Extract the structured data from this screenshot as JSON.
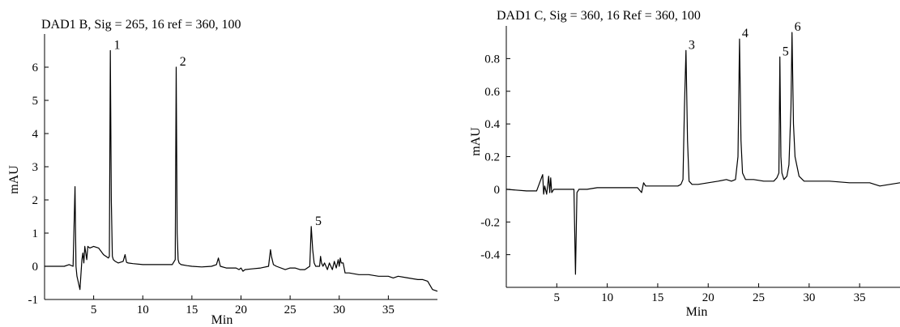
{
  "chart_data": [
    {
      "type": "line",
      "title": "DAD1 B, Sig = 265, 16 ref = 360, 100",
      "xlabel": "Min",
      "ylabel": "mAU",
      "xlim": [
        0,
        40
      ],
      "ylim": [
        -1,
        7
      ],
      "xticks": [
        5,
        10,
        15,
        20,
        25,
        30,
        35
      ],
      "yticks": [
        -1,
        0,
        1,
        2,
        3,
        4,
        5,
        6
      ],
      "grid": false,
      "peak_labels": [
        {
          "text": "1",
          "x": 6.8,
          "y": 6.5
        },
        {
          "text": "2",
          "x": 13.5,
          "y": 6.0
        },
        {
          "text": "5",
          "x": 27.3,
          "y": 1.2
        }
      ],
      "series": [
        {
          "x": [
            0,
            2.0,
            2.5,
            2.9,
            3.1,
            3.2,
            3.3,
            3.6,
            3.8,
            3.9,
            4.0,
            4.1,
            4.3,
            4.4,
            4.6,
            5.0,
            5.5,
            6.0,
            6.5,
            6.6,
            6.7,
            6.8,
            6.9,
            7.0,
            7.2,
            7.5,
            8.0,
            8.2,
            8.35,
            8.5,
            9.0,
            10.0,
            11.0,
            12.0,
            13.0,
            13.3,
            13.4,
            13.5,
            13.6,
            13.7,
            13.9,
            14.5,
            15.0,
            16.0,
            17.0,
            17.5,
            17.7,
            17.9,
            18.5,
            19.5,
            19.8,
            20.0,
            20.2,
            20.4,
            21.0,
            22.0,
            22.8,
            23.0,
            23.1,
            23.3,
            23.6,
            24.5,
            25.0,
            25.5,
            26.0,
            26.5,
            27.0,
            27.15,
            27.3,
            27.45,
            27.6,
            28.0,
            28.1,
            28.2,
            28.35,
            28.5,
            28.8,
            29.0,
            29.3,
            29.5,
            29.7,
            29.9,
            30.0,
            30.1,
            30.2,
            30.4,
            30.6,
            31.0,
            32.0,
            33.0,
            34.0,
            35.0,
            35.5,
            36.0,
            37.0,
            38.0,
            38.5,
            39.0,
            39.5,
            40.0
          ],
          "y": [
            0.0,
            0.0,
            0.05,
            0.0,
            2.4,
            0.0,
            -0.3,
            -0.7,
            0.2,
            0.4,
            0.1,
            0.6,
            0.2,
            0.6,
            0.55,
            0.6,
            0.55,
            0.35,
            0.25,
            0.3,
            6.5,
            2.0,
            0.3,
            0.2,
            0.15,
            0.1,
            0.15,
            0.35,
            0.12,
            0.1,
            0.08,
            0.05,
            0.05,
            0.05,
            0.05,
            0.2,
            6.0,
            1.0,
            0.2,
            0.1,
            0.05,
            0.02,
            0.0,
            -0.02,
            0.0,
            0.05,
            0.25,
            0.0,
            -0.05,
            -0.05,
            -0.1,
            -0.05,
            -0.15,
            -0.1,
            -0.08,
            -0.05,
            0.0,
            0.5,
            0.3,
            0.05,
            0.0,
            -0.1,
            -0.05,
            -0.05,
            -0.1,
            -0.1,
            0.0,
            1.2,
            0.5,
            0.1,
            0.0,
            0.0,
            0.3,
            0.1,
            0.0,
            0.1,
            -0.1,
            0.1,
            -0.1,
            0.15,
            -0.05,
            0.2,
            0.0,
            0.25,
            0.1,
            0.1,
            -0.2,
            -0.2,
            -0.25,
            -0.25,
            -0.3,
            -0.3,
            -0.35,
            -0.3,
            -0.35,
            -0.4,
            -0.4,
            -0.45,
            -0.7,
            -0.75
          ]
        }
      ]
    },
    {
      "type": "line",
      "title": "DAD1 C, Sig = 360, 16 Ref = 360, 100",
      "xlabel": "Min",
      "ylabel": "mAU",
      "xlim": [
        0,
        39
      ],
      "ylim": [
        -0.6,
        1.0
      ],
      "xticks": [
        5,
        10,
        15,
        20,
        25,
        30,
        35
      ],
      "yticks": [
        -0.4,
        -0.2,
        0,
        0.2,
        0.4,
        0.6,
        0.8
      ],
      "ytick_labels": [
        "-0.4",
        "-0.2",
        "0",
        "0.2",
        "0.4",
        "0.6",
        "0.8"
      ],
      "grid": false,
      "peak_labels": [
        {
          "text": "3",
          "x": 17.8,
          "y": 0.85
        },
        {
          "text": "4",
          "x": 23.1,
          "y": 0.92
        },
        {
          "text": "5",
          "x": 27.1,
          "y": 0.81
        },
        {
          "text": "6",
          "x": 28.3,
          "y": 0.96
        }
      ],
      "series": [
        {
          "x": [
            0,
            2.0,
            3.0,
            3.6,
            3.7,
            3.8,
            4.0,
            4.2,
            4.3,
            4.4,
            4.5,
            4.7,
            5.0,
            6.0,
            6.7,
            6.85,
            7.0,
            7.2,
            8.0,
            9.0,
            10.0,
            11.0,
            12.0,
            13.0,
            13.4,
            13.6,
            13.8,
            14.0,
            15.0,
            16.0,
            17.0,
            17.3,
            17.5,
            17.65,
            17.8,
            17.95,
            18.1,
            18.4,
            19.0,
            20.0,
            21.0,
            21.8,
            22.3,
            22.7,
            22.95,
            23.1,
            23.25,
            23.4,
            23.7,
            24.5,
            25.5,
            26.5,
            26.8,
            27.0,
            27.1,
            27.2,
            27.3,
            27.5,
            27.8,
            28.0,
            28.2,
            28.3,
            28.45,
            28.6,
            29.0,
            29.5,
            30.0,
            32.0,
            34.0,
            36.0,
            37.0,
            38.0,
            39.0
          ],
          "y": [
            0.0,
            -0.01,
            -0.01,
            0.09,
            -0.03,
            0.02,
            -0.03,
            0.08,
            -0.02,
            0.07,
            -0.02,
            0.0,
            0.0,
            0.0,
            0.0,
            -0.52,
            -0.02,
            0.0,
            0.0,
            0.01,
            0.01,
            0.01,
            0.01,
            0.01,
            -0.02,
            0.04,
            0.02,
            0.02,
            0.02,
            0.02,
            0.02,
            0.03,
            0.06,
            0.5,
            0.85,
            0.3,
            0.05,
            0.03,
            0.03,
            0.04,
            0.05,
            0.06,
            0.05,
            0.06,
            0.2,
            0.92,
            0.3,
            0.1,
            0.06,
            0.06,
            0.05,
            0.05,
            0.07,
            0.1,
            0.81,
            0.2,
            0.1,
            0.06,
            0.08,
            0.15,
            0.5,
            0.96,
            0.4,
            0.2,
            0.08,
            0.05,
            0.05,
            0.05,
            0.04,
            0.04,
            0.02,
            0.03,
            0.04
          ]
        }
      ]
    }
  ]
}
